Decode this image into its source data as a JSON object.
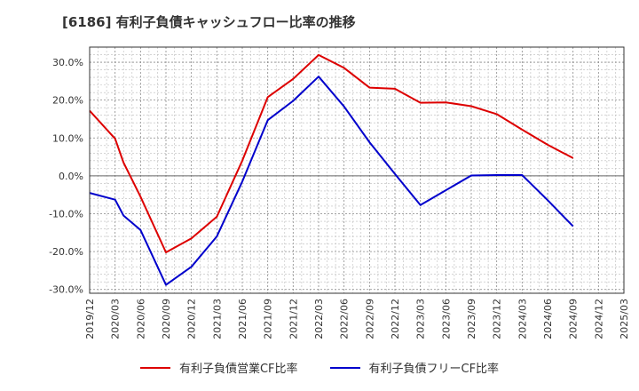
{
  "chart_data": {
    "type": "line",
    "title": "[6186]  有利子負債キャッシュフロー比率の推移",
    "x": [
      "2019/12",
      "2020/03",
      "2020/06",
      "2020/09",
      "2020/12",
      "2021/03",
      "2021/06",
      "2021/09",
      "2021/12",
      "2022/03",
      "2022/06",
      "2022/09",
      "2022/12",
      "2023/03",
      "2023/06",
      "2023/09",
      "2023/12",
      "2024/03",
      "2024/06",
      "2024/09",
      "2024/12",
      "2025/03"
    ],
    "yticks": [
      "30.0%",
      "20.0%",
      "10.0%",
      "0.0%",
      "-10.0%",
      "-20.0%",
      "-30.0%"
    ],
    "ylim": [
      -31,
      34
    ],
    "series": [
      {
        "name": "有利子負債営業CF比率",
        "color": "#dd0000",
        "points": [
          [
            "2019/12",
            17.2
          ],
          [
            "2020/03",
            9.8
          ],
          [
            "2020/04",
            3.5
          ],
          [
            "2020/05",
            -1.0
          ],
          [
            "2020/06",
            -5.5
          ],
          [
            "2020/09",
            -20.2
          ],
          [
            "2020/12",
            -16.5
          ],
          [
            "2021/03",
            -10.8
          ],
          [
            "2021/06",
            4.0
          ],
          [
            "2021/09",
            20.8
          ],
          [
            "2021/12",
            25.6
          ],
          [
            "2022/03",
            31.9
          ],
          [
            "2022/06",
            28.5
          ],
          [
            "2022/09",
            23.3
          ],
          [
            "2022/12",
            23.0
          ],
          [
            "2023/03",
            19.3
          ],
          [
            "2023/06",
            19.4
          ],
          [
            "2023/09",
            18.4
          ],
          [
            "2023/12",
            16.3
          ],
          [
            "2024/03",
            12.2
          ],
          [
            "2024/06",
            8.2
          ],
          [
            "2024/09",
            4.7
          ]
        ]
      },
      {
        "name": "有利子負債フリーCF比率",
        "color": "#0000cc",
        "points": [
          [
            "2019/12",
            -4.5
          ],
          [
            "2020/03",
            -6.3
          ],
          [
            "2020/04",
            -10.5
          ],
          [
            "2020/06",
            -14.3
          ],
          [
            "2020/09",
            -28.8
          ],
          [
            "2020/12",
            -24.0
          ],
          [
            "2021/03",
            -16.0
          ],
          [
            "2021/06",
            -1.5
          ],
          [
            "2021/09",
            14.7
          ],
          [
            "2021/12",
            19.8
          ],
          [
            "2022/03",
            26.2
          ],
          [
            "2022/06",
            18.3
          ],
          [
            "2022/09",
            8.9
          ],
          [
            "2022/12",
            0.5
          ],
          [
            "2023/03",
            -7.7
          ],
          [
            "2023/06",
            -3.8
          ],
          [
            "2023/09",
            0.1
          ],
          [
            "2023/12",
            0.2
          ],
          [
            "2024/03",
            0.2
          ],
          [
            "2024/06",
            -6.4
          ],
          [
            "2024/09",
            -13.3
          ]
        ]
      }
    ],
    "grid": true,
    "legend": "bottom"
  }
}
